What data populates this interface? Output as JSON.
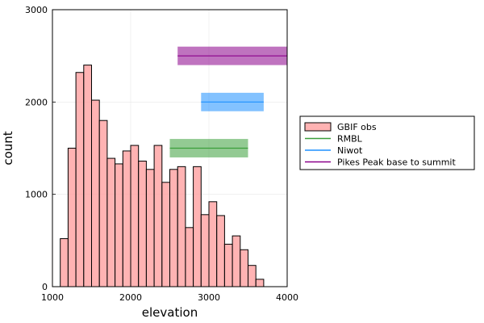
{
  "chart_data": {
    "type": "bar",
    "xlabel": "elevation",
    "ylabel": "count",
    "xlim": [
      1000,
      4000
    ],
    "ylim": [
      0,
      3000
    ],
    "x_ticks": [
      1000,
      2000,
      3000,
      4000
    ],
    "y_ticks": [
      0,
      1000,
      2000,
      3000
    ],
    "grid": true,
    "legend_position": "outside-right",
    "histogram": {
      "name": "GBIF obs",
      "color": "#FF9999",
      "bin_width": 100,
      "bins": [
        {
          "start": 1100,
          "count": 520
        },
        {
          "start": 1200,
          "count": 1500
        },
        {
          "start": 1300,
          "count": 2320
        },
        {
          "start": 1400,
          "count": 2400
        },
        {
          "start": 1500,
          "count": 2020
        },
        {
          "start": 1600,
          "count": 1800
        },
        {
          "start": 1700,
          "count": 1390
        },
        {
          "start": 1800,
          "count": 1330
        },
        {
          "start": 1900,
          "count": 1470
        },
        {
          "start": 2000,
          "count": 1530
        },
        {
          "start": 2100,
          "count": 1360
        },
        {
          "start": 2200,
          "count": 1270
        },
        {
          "start": 2300,
          "count": 1530
        },
        {
          "start": 2400,
          "count": 1130
        },
        {
          "start": 2500,
          "count": 1270
        },
        {
          "start": 2600,
          "count": 1300
        },
        {
          "start": 2700,
          "count": 640
        },
        {
          "start": 2800,
          "count": 1300
        },
        {
          "start": 2900,
          "count": 780
        },
        {
          "start": 3000,
          "count": 920
        },
        {
          "start": 3100,
          "count": 770
        },
        {
          "start": 3200,
          "count": 460
        },
        {
          "start": 3300,
          "count": 550
        },
        {
          "start": 3400,
          "count": 400
        },
        {
          "start": 3500,
          "count": 230
        },
        {
          "start": 3600,
          "count": 80
        }
      ]
    },
    "ranges": [
      {
        "name": "RMBL",
        "color": "#3A9E3A",
        "x_start": 2500,
        "x_end": 3500,
        "y": 1500,
        "band": [
          1400,
          1600
        ]
      },
      {
        "name": "Niwot",
        "color": "#1E90FF",
        "x_start": 2900,
        "x_end": 3700,
        "y": 2000,
        "band": [
          1900,
          2100
        ]
      },
      {
        "name": "Pikes Peak base to summit",
        "color": "#8B008B",
        "x_start": 2600,
        "x_end": 4000,
        "y": 2500,
        "band": [
          2400,
          2600
        ]
      }
    ]
  }
}
